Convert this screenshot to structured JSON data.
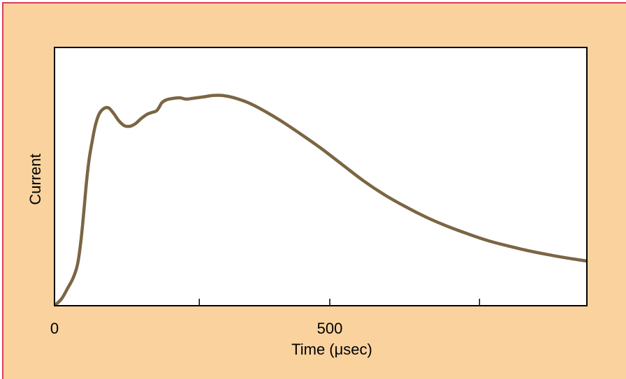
{
  "chart_data": {
    "type": "line",
    "xlabel": "Time (μsec)",
    "ylabel": "Current",
    "xlim": [
      0,
      967
    ],
    "ylim": [
      0,
      100
    ],
    "xticks": [
      263,
      500,
      772
    ],
    "xtick_labels": [
      {
        "value": 0,
        "label": "0"
      },
      {
        "value": 500,
        "label": "500"
      }
    ],
    "yticks": [],
    "grid": false,
    "series": [
      {
        "color": "#7B6543",
        "x": [
          0,
          13,
          24,
          34,
          42,
          48,
          53,
          58,
          63,
          69,
          75,
          82,
          91,
          99,
          108,
          117,
          127,
          137,
          147,
          157,
          168,
          178,
          185,
          190,
          195,
          203,
          216,
          228,
          239,
          251,
          269,
          288,
          305,
          326,
          352,
          377,
          409,
          447,
          485,
          523,
          561,
          599,
          637,
          675,
          713,
          751,
          789,
          827,
          865,
          904,
          942,
          967
        ],
        "y": [
          0,
          2.7,
          6.8,
          10.8,
          16.2,
          25.1,
          35.9,
          47.6,
          56.8,
          64.3,
          70.5,
          74.6,
          76.5,
          76.5,
          74.3,
          71.6,
          69.7,
          69.5,
          70.5,
          72.4,
          74.1,
          74.9,
          75.4,
          76.8,
          78.6,
          79.7,
          80.3,
          80.5,
          80.0,
          80.3,
          80.8,
          81.4,
          81.4,
          80.5,
          78.6,
          75.9,
          71.9,
          66.5,
          60.8,
          54.6,
          48.4,
          43.0,
          38.4,
          34.3,
          30.8,
          27.8,
          25.1,
          23.0,
          21.1,
          19.5,
          18.1,
          17.3
        ]
      }
    ]
  },
  "colors": {
    "background": "#F9D29E",
    "frame": "#DD3A5C",
    "plot_background": "#FFFFFF",
    "axis": "#000000"
  }
}
